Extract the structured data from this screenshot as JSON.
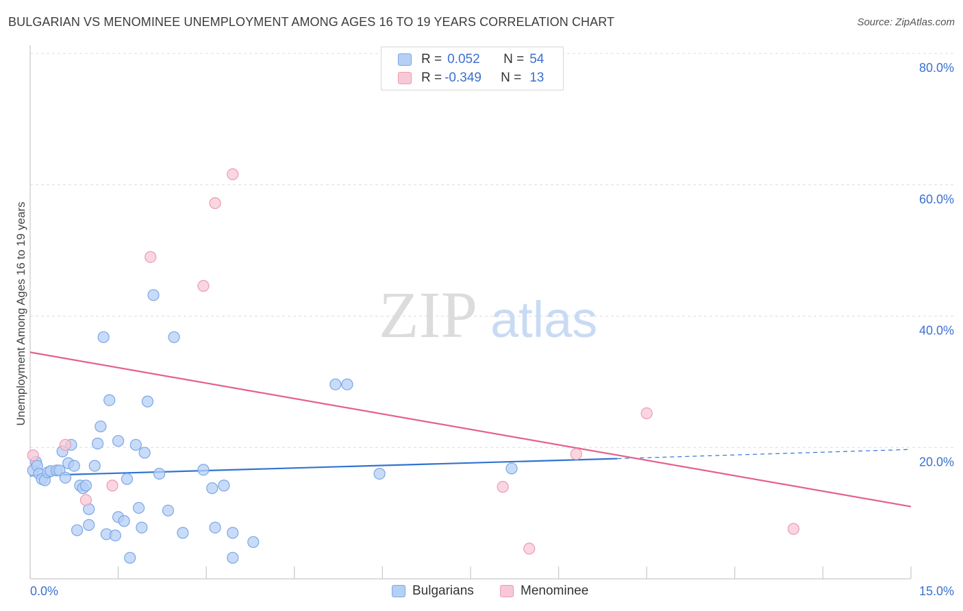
{
  "title": "BULGARIAN VS MENOMINEE UNEMPLOYMENT AMONG AGES 16 TO 19 YEARS CORRELATION CHART",
  "source": "Source: ZipAtlas.com",
  "watermark": {
    "zip": "ZIP",
    "atlas": "atlas"
  },
  "legend_stats": [
    {
      "r_label": "R =",
      "r_value": "0.052",
      "n_label": "N =",
      "n_value": "54"
    },
    {
      "r_label": "R =",
      "r_value": "-0.349",
      "n_label": "N =",
      "n_value": "13"
    }
  ],
  "colors": {
    "bulgarians_fill": "#b6cff5",
    "bulgarians_stroke": "#7aa6e6",
    "bulgarians_line": "#2f73d0",
    "menominee_fill": "#f8c8d6",
    "menominee_stroke": "#ec9ab3",
    "menominee_line": "#e4608a",
    "axis_tick_label": "#3a70d0",
    "grid": "#dcdcdc"
  },
  "chart_data": {
    "type": "scatter",
    "title": "BULGARIAN VS MENOMINEE UNEMPLOYMENT AMONG AGES 16 TO 19 YEARS CORRELATION CHART",
    "xlabel": "",
    "ylabel": "Unemployment Among Ages 16 to 19 years",
    "xlim": [
      0,
      15
    ],
    "ylim": [
      0,
      80
    ],
    "x_tick_labels": [
      "0.0%",
      "15.0%"
    ],
    "y_ticks": [
      20,
      40,
      60,
      80
    ],
    "y_tick_labels": [
      "20.0%",
      "40.0%",
      "60.0%",
      "80.0%"
    ],
    "grid": true,
    "legend_position": "bottom",
    "series": [
      {
        "name": "Bulgarians",
        "points": [
          [
            0.05,
            16.5
          ],
          [
            0.1,
            17.8
          ],
          [
            0.12,
            17.2
          ],
          [
            0.15,
            16.0
          ],
          [
            0.2,
            15.2
          ],
          [
            0.25,
            15.0
          ],
          [
            0.3,
            16.2
          ],
          [
            0.35,
            16.4
          ],
          [
            0.45,
            16.5
          ],
          [
            0.5,
            16.5
          ],
          [
            0.55,
            19.4
          ],
          [
            0.6,
            15.4
          ],
          [
            0.65,
            17.6
          ],
          [
            0.7,
            20.4
          ],
          [
            0.75,
            17.2
          ],
          [
            0.8,
            7.4
          ],
          [
            0.85,
            14.2
          ],
          [
            0.9,
            13.8
          ],
          [
            0.95,
            14.2
          ],
          [
            1.0,
            10.6
          ],
          [
            1.0,
            8.2
          ],
          [
            1.1,
            17.2
          ],
          [
            1.15,
            20.6
          ],
          [
            1.2,
            23.2
          ],
          [
            1.25,
            36.8
          ],
          [
            1.3,
            6.8
          ],
          [
            1.35,
            27.2
          ],
          [
            1.45,
            6.6
          ],
          [
            1.5,
            9.4
          ],
          [
            1.5,
            21.0
          ],
          [
            1.6,
            8.8
          ],
          [
            1.65,
            15.2
          ],
          [
            1.7,
            3.2
          ],
          [
            1.8,
            20.4
          ],
          [
            1.85,
            10.8
          ],
          [
            1.9,
            7.8
          ],
          [
            1.95,
            19.2
          ],
          [
            2.0,
            27.0
          ],
          [
            2.1,
            43.2
          ],
          [
            2.2,
            16.0
          ],
          [
            2.35,
            10.4
          ],
          [
            2.45,
            36.8
          ],
          [
            2.6,
            7.0
          ],
          [
            2.95,
            16.6
          ],
          [
            3.1,
            13.8
          ],
          [
            3.15,
            7.8
          ],
          [
            3.3,
            14.2
          ],
          [
            3.45,
            7.0
          ],
          [
            3.45,
            3.2
          ],
          [
            3.8,
            5.6
          ],
          [
            5.2,
            29.6
          ],
          [
            5.4,
            29.6
          ],
          [
            5.95,
            16.0
          ],
          [
            8.2,
            16.8
          ]
        ],
        "trend": {
          "x_start": 0,
          "x_end": 10.0,
          "y_start": 15.7,
          "y_end": 18.3,
          "dashed_to_x": 15.0,
          "dashed_to_y": 19.7
        }
      },
      {
        "name": "Menominee",
        "points": [
          [
            0.05,
            18.8
          ],
          [
            0.6,
            20.4
          ],
          [
            0.95,
            12.0
          ],
          [
            1.4,
            14.2
          ],
          [
            2.05,
            49.0
          ],
          [
            2.95,
            44.6
          ],
          [
            3.15,
            57.2
          ],
          [
            3.45,
            61.6
          ],
          [
            8.05,
            14.0
          ],
          [
            8.5,
            4.6
          ],
          [
            9.3,
            19.0
          ],
          [
            10.5,
            25.2
          ],
          [
            13.0,
            7.6
          ]
        ],
        "trend": {
          "x_start": 0,
          "x_end": 15.0,
          "y_start": 34.5,
          "y_end": 11.0
        }
      }
    ]
  }
}
